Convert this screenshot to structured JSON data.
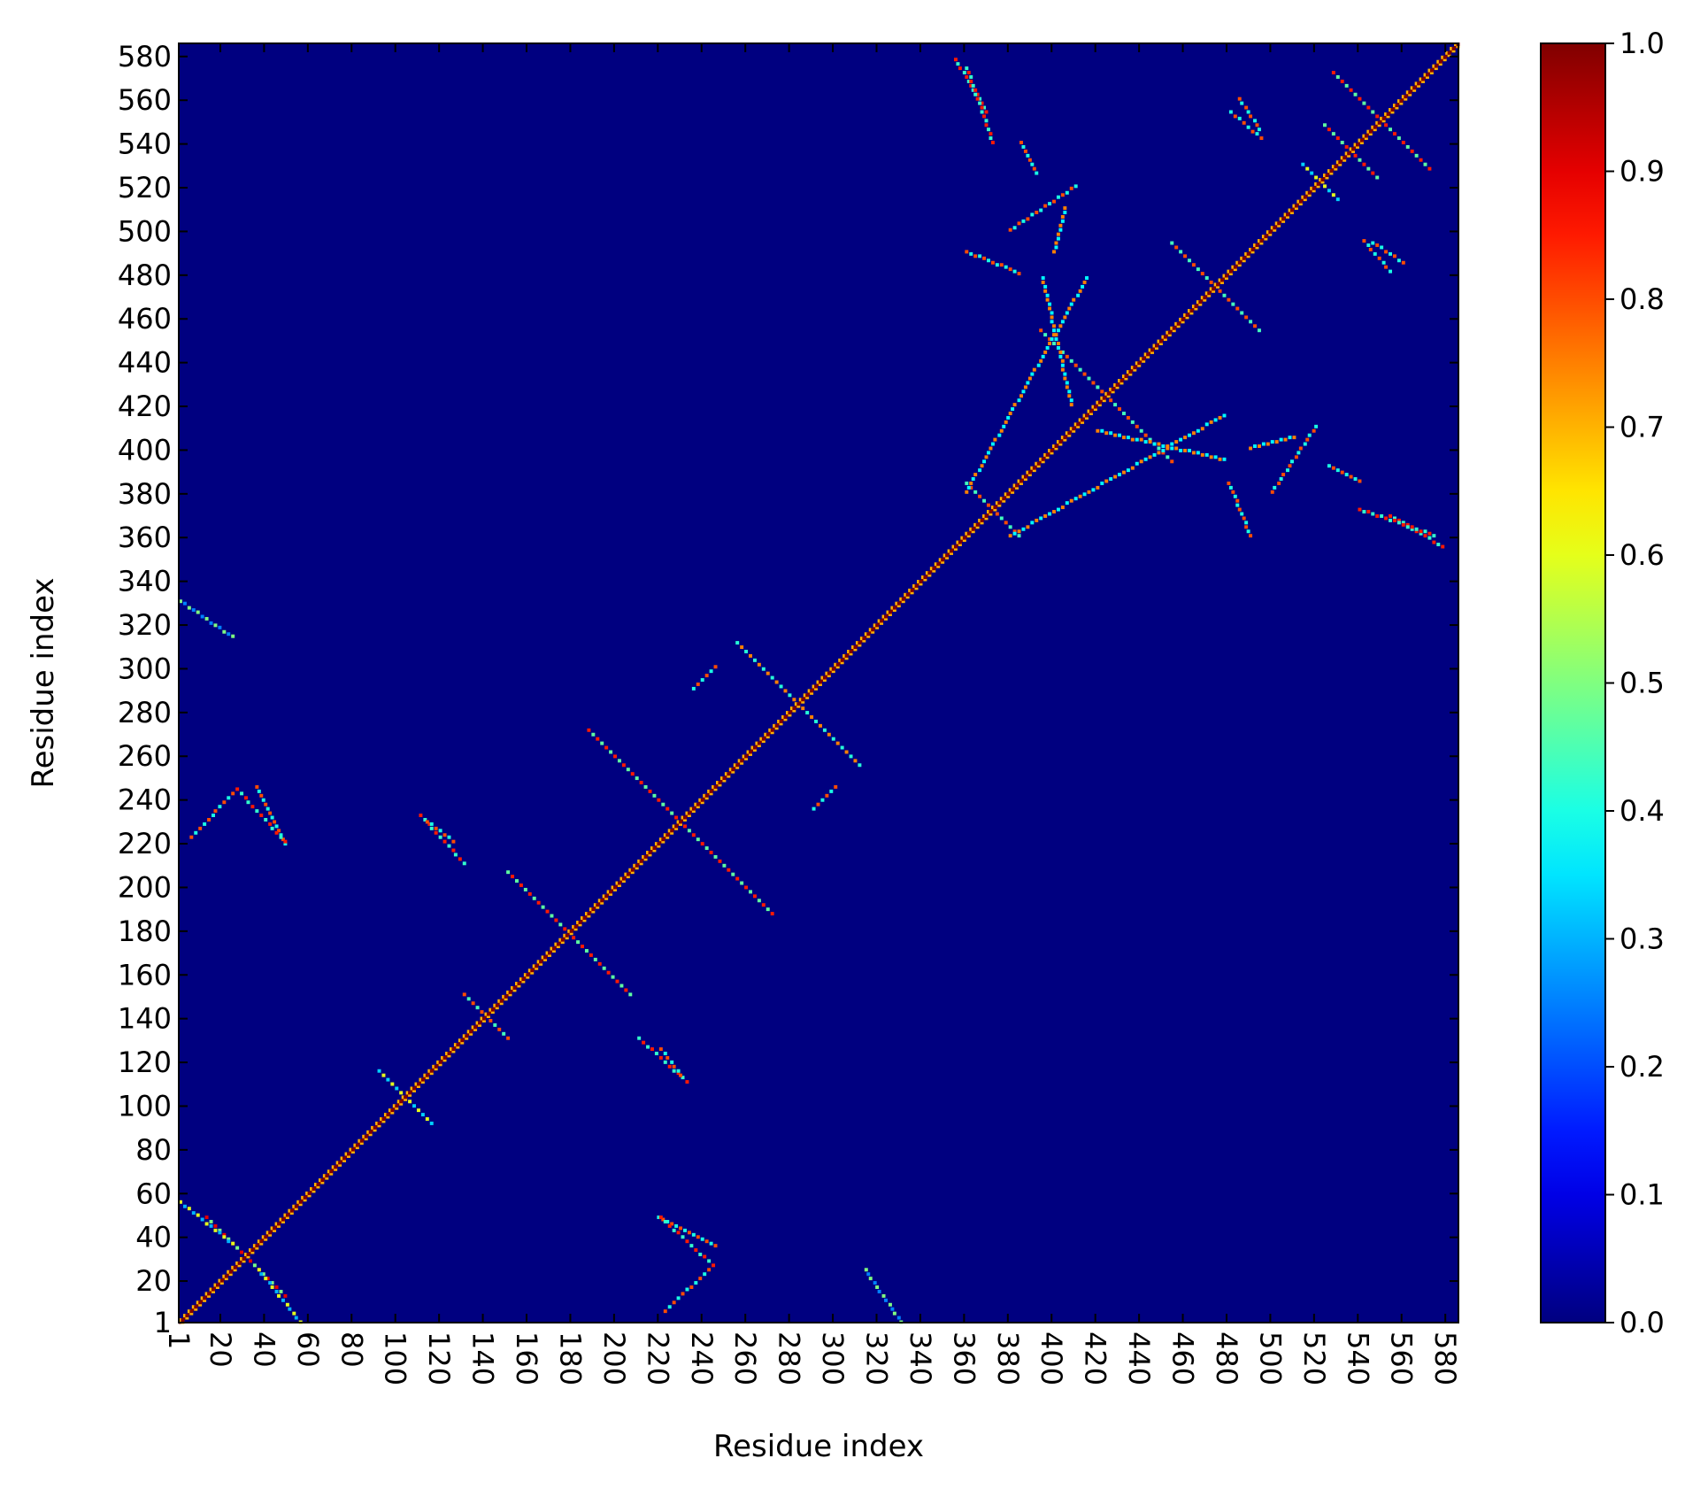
{
  "chart_data": {
    "type": "heatmap",
    "title": "",
    "xlabel": "Residue index",
    "ylabel": "Residue index",
    "n_residues": 586,
    "xlim": [
      1,
      586
    ],
    "ylim": [
      1,
      586
    ],
    "x_ticks": [
      "1",
      "20",
      "40",
      "60",
      "80",
      "100",
      "120",
      "140",
      "160",
      "180",
      "200",
      "220",
      "240",
      "260",
      "280",
      "300",
      "320",
      "340",
      "360",
      "380",
      "400",
      "420",
      "440",
      "460",
      "480",
      "500",
      "520",
      "540",
      "560",
      "580"
    ],
    "y_ticks": [
      "1",
      "20",
      "40",
      "60",
      "80",
      "100",
      "120",
      "140",
      "160",
      "180",
      "200",
      "220",
      "240",
      "260",
      "280",
      "300",
      "320",
      "340",
      "360",
      "380",
      "400",
      "420",
      "440",
      "460",
      "480",
      "500",
      "520",
      "540",
      "560",
      "580"
    ],
    "colorbar": {
      "colormap": "jet",
      "range": [
        0.0,
        1.0
      ],
      "ticks": [
        "0.0",
        "0.1",
        "0.2",
        "0.3",
        "0.4",
        "0.5",
        "0.6",
        "0.7",
        "0.8",
        "0.9",
        "1.0"
      ]
    },
    "diagonal_value": 1.0,
    "background_value": 0.0,
    "contact_features": [
      {
        "kind": "cross",
        "center": 30,
        "arm": 18,
        "value": 0.9
      },
      {
        "kind": "cross",
        "center": 103,
        "arm": 12,
        "value": 0.6
      },
      {
        "kind": "cross",
        "center": 140,
        "arm": 10,
        "value": 0.8
      },
      {
        "kind": "cross",
        "center": 178,
        "arm": 28,
        "value": 0.85
      },
      {
        "kind": "cross",
        "center": 229,
        "arm": 42,
        "value": 0.85
      },
      {
        "kind": "cross",
        "center": 283,
        "arm": 28,
        "value": 0.75
      },
      {
        "kind": "cross",
        "center": 372,
        "arm": 12,
        "value": 0.8
      },
      {
        "kind": "cross",
        "center": 424,
        "arm": 30,
        "value": 0.8
      },
      {
        "kind": "cross",
        "center": 474,
        "arm": 20,
        "value": 0.8
      },
      {
        "kind": "cross",
        "center": 536,
        "arm": 12,
        "value": 0.85
      },
      {
        "kind": "cross",
        "center": 550,
        "arm": 22,
        "value": 0.85
      },
      {
        "kind": "cross",
        "center": 522,
        "arm": 8,
        "value": 0.6
      },
      {
        "kind": "segment",
        "from": [
          35,
          245
        ],
        "to": [
          48,
          218
        ],
        "value": 0.8
      },
      {
        "kind": "segment",
        "from": [
          5,
          222
        ],
        "to": [
          25,
          243
        ],
        "value": 0.8
      },
      {
        "kind": "segment",
        "from": [
          220,
          48
        ],
        "to": [
          245,
          25
        ],
        "value": 0.85
      },
      {
        "kind": "segment",
        "from": [
          0,
          55
        ],
        "to": [
          25,
          35
        ],
        "value": 0.6
      },
      {
        "kind": "segment",
        "from": [
          0,
          330
        ],
        "to": [
          25,
          313
        ],
        "value": 0.5
      },
      {
        "kind": "segment",
        "from": [
          110,
          232
        ],
        "to": [
          130,
          210
        ],
        "value": 0.85
      },
      {
        "kind": "segment",
        "from": [
          220,
          125
        ],
        "to": [
          230,
          112
        ],
        "value": 0.8
      },
      {
        "kind": "segment",
        "from": [
          355,
          578
        ],
        "to": [
          370,
          553
        ],
        "value": 0.85
      },
      {
        "kind": "segment",
        "from": [
          385,
          540
        ],
        "to": [
          392,
          525
        ],
        "value": 0.8
      },
      {
        "kind": "segment",
        "from": [
          360,
          380
        ],
        "to": [
          415,
          478
        ],
        "value": 0.75
      },
      {
        "kind": "segment",
        "from": [
          420,
          408
        ],
        "to": [
          478,
          395
        ],
        "value": 0.75
      },
      {
        "kind": "segment",
        "from": [
          500,
          380
        ],
        "to": [
          520,
          410
        ],
        "value": 0.8
      },
      {
        "kind": "segment",
        "from": [
          540,
          372
        ],
        "to": [
          575,
          360
        ],
        "value": 0.85
      },
      {
        "kind": "segment",
        "from": [
          485,
          560
        ],
        "to": [
          495,
          545
        ],
        "value": 0.8
      },
      {
        "kind": "segment",
        "from": [
          360,
          490
        ],
        "to": [
          385,
          480
        ],
        "value": 0.8
      },
      {
        "kind": "segment",
        "from": [
          542,
          495
        ],
        "to": [
          555,
          480
        ],
        "value": 0.8
      },
      {
        "kind": "segment",
        "from": [
          405,
          510
        ],
        "to": [
          400,
          490
        ],
        "value": 0.75
      },
      {
        "kind": "segment",
        "from": [
          245,
          300
        ],
        "to": [
          235,
          290
        ],
        "value": 0.8
      }
    ]
  }
}
